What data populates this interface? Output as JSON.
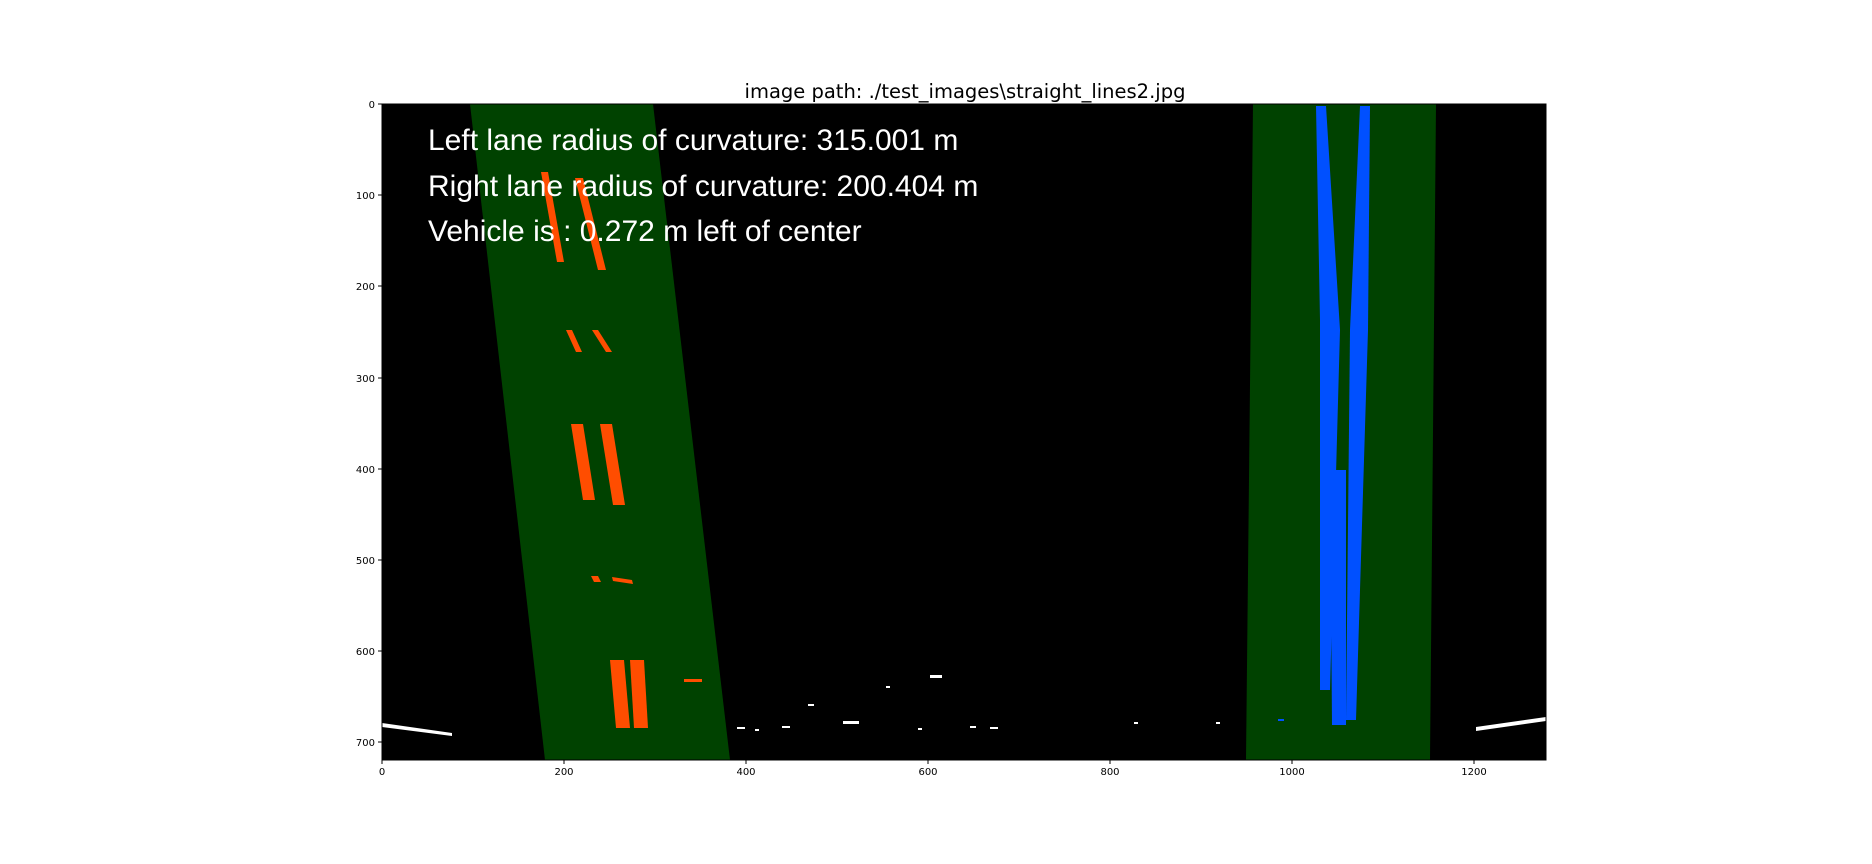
{
  "title": "image path: ./test_images\\straight_lines2.jpg",
  "overlay_lines": [
    "Left lane radius of curvature: 315.001 m",
    "Right lane radius of curvature: 200.404 m",
    "Vehicle is : 0.272 m left of center"
  ],
  "axes": {
    "x_ticks": [
      "0",
      "200",
      "400",
      "600",
      "800",
      "1000",
      "1200"
    ],
    "y_ticks": [
      "0",
      "100",
      "200",
      "300",
      "400",
      "500",
      "600",
      "700"
    ]
  },
  "colors": {
    "background": "#000000",
    "lane_fill": "#004200",
    "left_lane_pixels": "#ff4d00",
    "right_lane_pixels": "#0050ff",
    "text": "#ffffff"
  }
}
